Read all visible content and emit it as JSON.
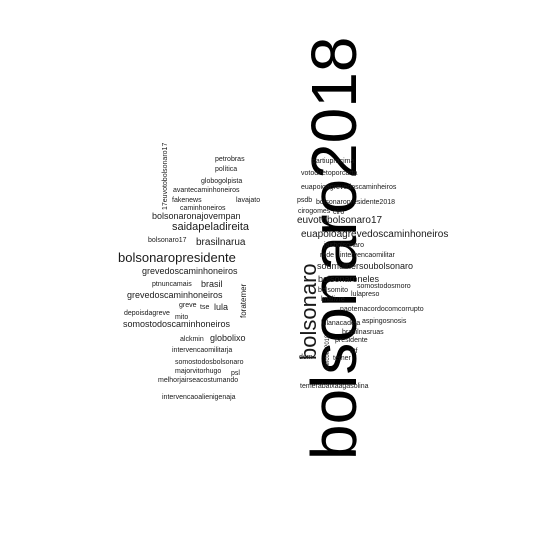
{
  "words": {
    "main": "bolsonaro2018",
    "bolsonaro": "bolsonaro",
    "bolsonaropresidente": "bolsonaropresidente",
    "saidapeladireita": "saidapeladireita",
    "euapoioagrevedoscaminhoneiros": "euapoioagrevedoscaminhoneiros",
    "euvotobolsonaro17_h": "euvotobolsonaro17",
    "soumulhersoubolsonaro": "soumulhersoubolsonaro",
    "bolsonaroneles": "bolsonaroneles",
    "grevedoscaminhoneiros_a": "grevedoscaminhoneiros",
    "grevedoscaminhoneiros_b": "grevedoscaminhoneiros",
    "somostodoscaminhoneiros": "somostodoscaminhoneiros",
    "bolsonaronajovempan": "bolsonaronajovempan",
    "brasilnarua": "brasilnarua",
    "brasil": "brasil",
    "lula": "lula",
    "globolixo": "globolixo",
    "foratemer": "foratemer",
    "petrobras": "petrobras",
    "politica": "política",
    "globogolpista": "globogolpista",
    "avantecaminhoneiros": "avantecaminhoneiros",
    "fakenews": "fakenews",
    "lavajato": "lavajato",
    "caminhoneiros": "caminhoneiros",
    "euvotobolsonaro17_v": "17euvotobolsonaro17",
    "bolsonaro17": "bolsonaro17",
    "ptnuncamais": "ptnuncamais",
    "depoisdagreve": "depoisdagreve",
    "greve": "greve",
    "tse": "tse",
    "mito": "mito",
    "alckmin": "alckmin",
    "intervencaomilitarja": "intervencaomilitarja",
    "somostodosbolsonaro": "somostodosbolsonaro",
    "majorvitorhugo": "majorvitorhugo",
    "psl": "psl",
    "melhorjairseacostumando": "melhorjairseacostumando",
    "intervencaoalienigenaja": "intervencaoalienigenaja",
    "partiupracima": "partiupracima",
    "votodiretoporcarta": "votodiretoporcarta",
    "euapoioagrevedoscaminheiros": "euapoioagrevedoscaminheiros",
    "psdb": "psdb",
    "bolsonaropresidente2018": "bolsonaropresidente2018",
    "ciro": "ciro",
    "ciragomes": "cirogomes",
    "jairbolsonaro": "jairbolsonaro",
    "rede": "rede",
    "intervencaomilitar": "intervencaomilitar",
    "somostodosmoro": "somostodosmoro",
    "bolsomito": "bolsomito",
    "lulapreso": "lulapreso",
    "lulalivre": "lulalivre",
    "naotemacordocomcorrupto": "naotemacordocomcorrupto",
    "lulanacadeia": "lulanacadeia",
    "aspingosnosis": "aspingosnosis",
    "brasilnasruas": "brasilnasruas",
    "presidente": "presidente",
    "stf": "stf",
    "eleicoes2018": "eleicoes2018",
    "dem": "dem",
    "temer": "temer",
    "temerabaixaagasolina": "temerabaixaagasolina"
  }
}
